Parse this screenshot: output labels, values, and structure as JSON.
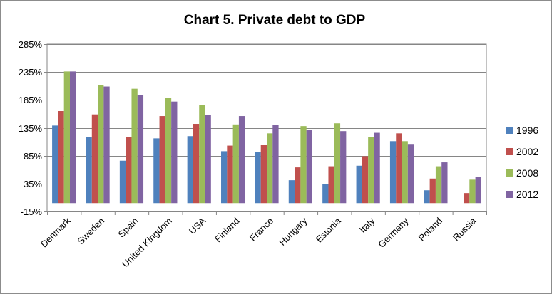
{
  "chart_data": {
    "type": "bar",
    "title": "Chart 5. Private debt to GDP",
    "xlabel": "",
    "ylabel": "",
    "ylim": [
      -15,
      285
    ],
    "yticks": [
      285,
      235,
      185,
      135,
      85,
      35,
      -15
    ],
    "ytick_labels": [
      "285%",
      "235%",
      "185%",
      "135%",
      "85%",
      "35%",
      "-15%"
    ],
    "grid": true,
    "legend_position": "right",
    "categories": [
      "Denmark",
      "Sweden",
      "Spain",
      "United Kingdom",
      "USA",
      "Finland",
      "France",
      "Hungary",
      "Estonia",
      "Italy",
      "Germany",
      "Poland",
      "Russia"
    ],
    "series": [
      {
        "name": "1996",
        "color": "#4f81bd",
        "values": [
          139,
          118,
          76,
          116,
          120,
          93,
          92,
          41,
          34,
          67,
          111,
          23,
          null
        ]
      },
      {
        "name": "2002",
        "color": "#c0504d",
        "values": [
          165,
          159,
          119,
          156,
          142,
          103,
          104,
          64,
          66,
          84,
          125,
          44,
          18
        ]
      },
      {
        "name": "2008",
        "color": "#9bbb59",
        "values": [
          236,
          211,
          205,
          188,
          176,
          141,
          125,
          138,
          143,
          118,
          111,
          66,
          42
        ]
      },
      {
        "name": "2012",
        "color": "#8064a2",
        "values": [
          236,
          209,
          194,
          182,
          158,
          156,
          140,
          131,
          129,
          126,
          106,
          73,
          47
        ]
      }
    ]
  }
}
